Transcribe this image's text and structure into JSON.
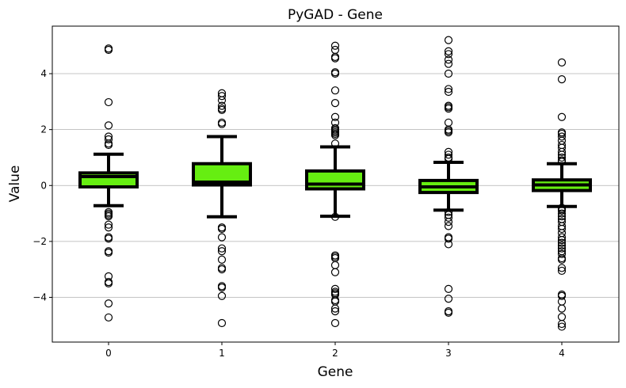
{
  "chart_data": {
    "type": "box",
    "title": "PyGAD - Gene",
    "xlabel": "Gene",
    "ylabel": "Value",
    "ylim": [
      -5.6,
      5.7
    ],
    "yticks": [
      -4,
      -2,
      0,
      2,
      4
    ],
    "grid": "y",
    "colors": {
      "box_fill": "#66ee11",
      "box_edge": "#000000",
      "grid": "#b0b0b0"
    },
    "categories": [
      "0",
      "1",
      "2",
      "3",
      "4"
    ],
    "boxes": [
      {
        "gene": "0",
        "whisker_low": -0.72,
        "q1": -0.05,
        "median": 0.32,
        "q3": 0.45,
        "whisker_high": 1.12,
        "outliers": [
          4.9,
          4.85,
          2.98,
          2.15,
          1.75,
          1.65,
          1.5,
          1.45,
          -0.95,
          -1.0,
          -1.05,
          -1.1,
          -1.4,
          -1.5,
          -1.85,
          -1.9,
          -2.35,
          -2.4,
          -3.25,
          -3.45,
          -3.5,
          -4.22,
          -4.72
        ]
      },
      {
        "gene": "1",
        "whisker_low": -1.12,
        "q1": 0.02,
        "median": 0.12,
        "q3": 0.78,
        "whisker_high": 1.75,
        "outliers": [
          3.3,
          3.2,
          3.05,
          2.85,
          2.75,
          2.7,
          2.25,
          2.2,
          -1.5,
          -1.55,
          -1.85,
          -2.25,
          -2.35,
          -2.65,
          -2.95,
          -3.0,
          -3.6,
          -3.65,
          -3.95,
          -4.92
        ]
      },
      {
        "gene": "2",
        "whisker_low": -1.1,
        "q1": -0.12,
        "median": 0.05,
        "q3": 0.52,
        "whisker_high": 1.38,
        "outliers": [
          5.0,
          4.85,
          4.6,
          4.55,
          4.05,
          4.0,
          3.4,
          2.95,
          2.45,
          2.25,
          2.05,
          2.0,
          1.95,
          1.9,
          1.85,
          1.8,
          1.5,
          -1.12,
          -2.5,
          -2.55,
          -2.6,
          -2.85,
          -3.1,
          -3.7,
          -3.8,
          -3.85,
          -3.9,
          -4.1,
          -4.15,
          -4.4,
          -4.5,
          -4.92
        ]
      },
      {
        "gene": "3",
        "whisker_low": -0.88,
        "q1": -0.25,
        "median": -0.05,
        "q3": 0.18,
        "whisker_high": 0.83,
        "outliers": [
          5.2,
          4.8,
          4.7,
          4.5,
          4.35,
          4.0,
          3.45,
          3.35,
          2.85,
          2.8,
          2.75,
          2.25,
          2.0,
          1.95,
          1.9,
          1.2,
          1.1,
          1.0,
          0.95,
          -0.95,
          -1.05,
          -1.15,
          -1.3,
          -1.45,
          -1.85,
          -1.9,
          -2.1,
          -3.7,
          -4.05,
          -4.5,
          -4.55
        ]
      },
      {
        "gene": "4",
        "whisker_low": -0.75,
        "q1": -0.18,
        "median": 0.02,
        "q3": 0.2,
        "whisker_high": 0.78,
        "outliers": [
          4.4,
          3.8,
          2.45,
          1.9,
          1.85,
          1.75,
          1.6,
          1.45,
          1.35,
          1.2,
          1.1,
          1.0,
          0.9,
          0.85,
          -0.8,
          -0.85,
          -0.9,
          -1.0,
          -1.1,
          -1.2,
          -1.3,
          -1.45,
          -1.55,
          -1.7,
          -1.85,
          -1.95,
          -2.05,
          -2.15,
          -2.25,
          -2.35,
          -2.45,
          -2.6,
          -2.65,
          -2.95,
          -3.05,
          -3.9,
          -3.95,
          -4.15,
          -4.4,
          -4.7,
          -4.95,
          -5.05
        ]
      }
    ]
  }
}
